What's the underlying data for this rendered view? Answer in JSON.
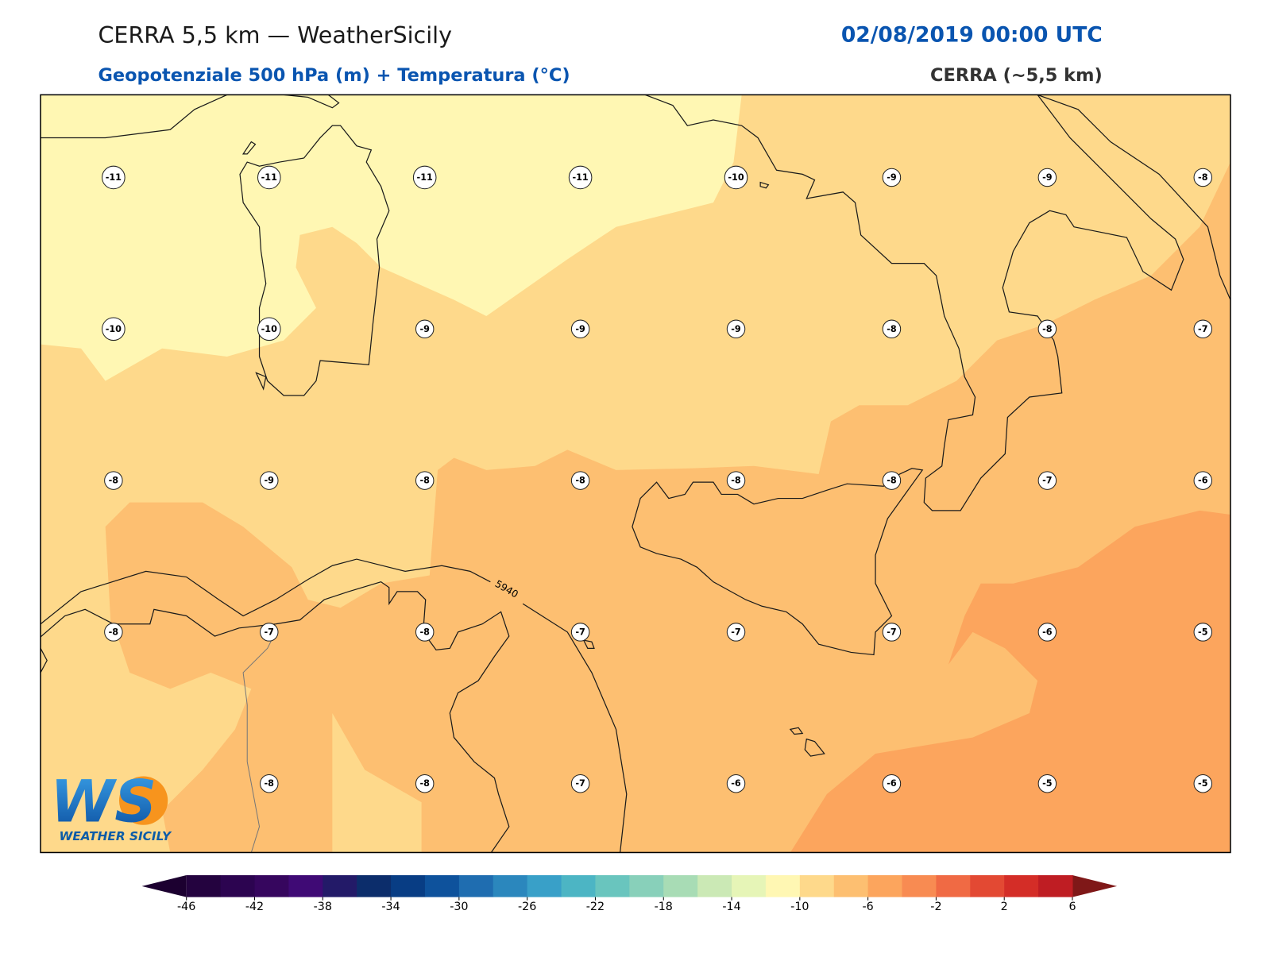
{
  "header": {
    "title": "CERRA 5,5 km — WeatherSicily",
    "datetime": "02/08/2019 00:00 UTC",
    "subtitle": "Geopotenziale 500 hPa (m) + Temperatura (°C)",
    "source": "CERRA (~5,5 km)"
  },
  "map": {
    "temperature_labels": [
      [
        -11,
        -11,
        -11,
        -11,
        -10,
        -9,
        -9,
        -8
      ],
      [
        -10,
        -10,
        -9,
        -9,
        -9,
        -8,
        -8,
        -7
      ],
      [
        -8,
        -9,
        -8,
        -8,
        -8,
        -8,
        -7,
        -6
      ],
      [
        -8,
        -7,
        -8,
        -7,
        -7,
        -7,
        -6,
        -5
      ],
      [
        null,
        -8,
        -8,
        -7,
        -6,
        -6,
        -5,
        -5
      ]
    ],
    "contour_label": "5940"
  },
  "logo": {
    "mark": "WS",
    "name": "WEATHER SICILY"
  },
  "colorbar": {
    "ticks": [
      -46,
      -42,
      -38,
      -34,
      -30,
      -26,
      -22,
      -18,
      -14,
      -10,
      -6,
      -2,
      2,
      6
    ],
    "colors": [
      "#24033f",
      "#2c0450",
      "#36065e",
      "#3f0a75",
      "#231a68",
      "#0c2d6b",
      "#083d84",
      "#0e529c",
      "#1f6db0",
      "#2b87bd",
      "#39a0c8",
      "#4cb5c4",
      "#69c5be",
      "#88d0ba",
      "#a8dcb5",
      "#cbe9b5",
      "#e6f5b7",
      "#fff7b3",
      "#fed98b",
      "#fdbf71",
      "#fca55d",
      "#f88b52",
      "#f06a44",
      "#e34933",
      "#d42d27",
      "#bf1d23"
    ],
    "under_color": "#1c0030",
    "over_color": "#7f1818"
  }
}
